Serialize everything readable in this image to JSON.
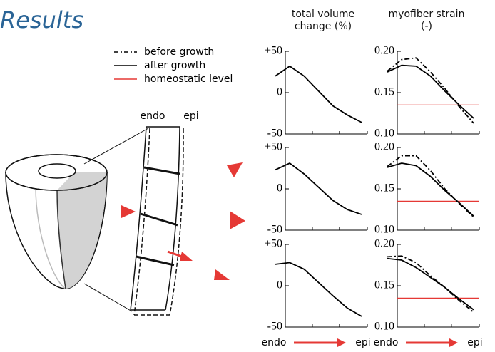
{
  "title": "Results",
  "legend": [
    {
      "label": "before growth",
      "color": "#000000",
      "dash": true
    },
    {
      "label": "after growth",
      "color": "#000000",
      "dash": false
    },
    {
      "label": "homeostatic level",
      "color": "#e53935",
      "dash": false
    }
  ],
  "diagram": {
    "labels": [
      "endo",
      "epi"
    ]
  },
  "columns": [
    "total volume change (%)",
    "myofiber strain (-)"
  ],
  "x_axis_labels": [
    "endo",
    "epi"
  ],
  "chart_data": [
    {
      "type": "line",
      "ylim": [
        -50,
        50
      ],
      "yticks": [
        {
          "value": 50,
          "label": "+50"
        },
        0,
        -50
      ],
      "series": [
        {
          "color": "#000000",
          "dash": false,
          "values": [
            20,
            32,
            20,
            2,
            -16,
            -27,
            -36
          ]
        }
      ]
    },
    {
      "type": "line",
      "ylim": [
        0.1,
        0.2
      ],
      "yticks": [
        {
          "value": 0.2,
          "label": "0.20"
        },
        0.15,
        {
          "value": 0.1,
          "label": "0.10"
        }
      ],
      "hline": {
        "value": 0.135,
        "color": "#e53935"
      },
      "series": [
        {
          "color": "#000000",
          "dash": true,
          "values": [
            0.176,
            0.19,
            0.192,
            0.175,
            0.155,
            0.133,
            0.113
          ]
        },
        {
          "color": "#000000",
          "dash": false,
          "values": [
            0.175,
            0.183,
            0.182,
            0.17,
            0.152,
            0.135,
            0.119
          ]
        }
      ]
    },
    {
      "type": "line",
      "ylim": [
        -50,
        50
      ],
      "yticks": [
        {
          "value": 50,
          "label": "+50"
        },
        0,
        -50
      ],
      "series": [
        {
          "color": "#000000",
          "dash": false,
          "values": [
            23,
            31,
            18,
            2,
            -14,
            -25,
            -31
          ]
        }
      ]
    },
    {
      "type": "line",
      "ylim": [
        0.1,
        0.2
      ],
      "yticks": [
        {
          "value": 0.2,
          "label": "0.20"
        },
        0.15,
        {
          "value": 0.1,
          "label": "0.10"
        }
      ],
      "hline": {
        "value": 0.135,
        "color": "#e53935"
      },
      "series": [
        {
          "color": "#000000",
          "dash": true,
          "values": [
            0.177,
            0.19,
            0.19,
            0.172,
            0.15,
            0.132,
            0.116
          ]
        },
        {
          "color": "#000000",
          "dash": false,
          "values": [
            0.176,
            0.181,
            0.178,
            0.165,
            0.148,
            0.133,
            0.117
          ]
        }
      ]
    },
    {
      "type": "line",
      "ylim": [
        -50,
        50
      ],
      "yticks": [
        {
          "value": 50,
          "label": "+50"
        },
        0,
        -50
      ],
      "series": [
        {
          "color": "#000000",
          "dash": false,
          "values": [
            26,
            28,
            20,
            4,
            -12,
            -27,
            -37
          ]
        }
      ]
    },
    {
      "type": "line",
      "ylim": [
        0.1,
        0.2
      ],
      "yticks": [
        {
          "value": 0.2,
          "label": "0.20"
        },
        0.15,
        {
          "value": 0.1,
          "label": "0.10"
        }
      ],
      "hline": {
        "value": 0.135,
        "color": "#e53935"
      },
      "series": [
        {
          "color": "#000000",
          "dash": true,
          "values": [
            0.185,
            0.186,
            0.178,
            0.162,
            0.148,
            0.132,
            0.118
          ]
        },
        {
          "color": "#000000",
          "dash": false,
          "values": [
            0.183,
            0.181,
            0.172,
            0.16,
            0.148,
            0.134,
            0.121
          ]
        }
      ]
    }
  ]
}
